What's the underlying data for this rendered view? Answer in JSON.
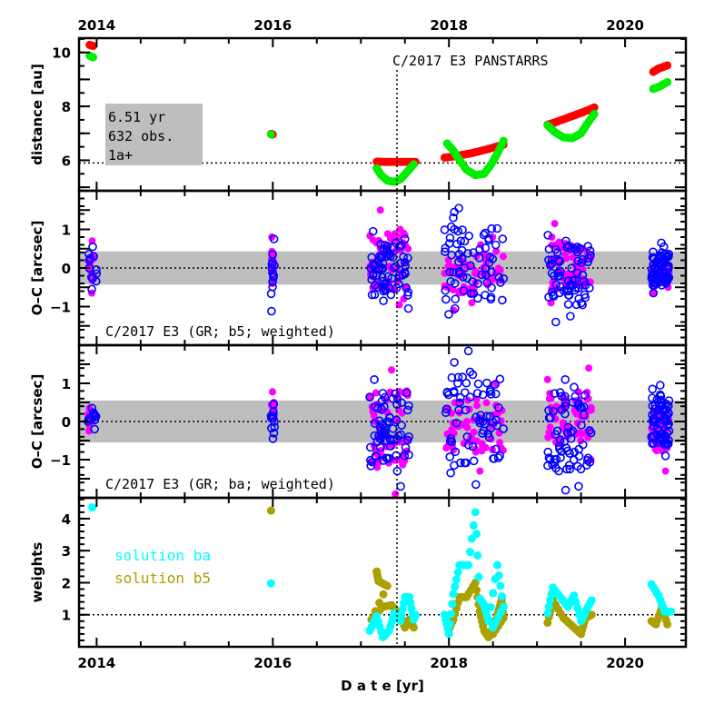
{
  "chart_data": {
    "type": "scatter",
    "title": "C/2017 E3 PANSTARRS",
    "xlabel": "D a t e [yr]",
    "xlim": [
      2013.8,
      2020.69
    ],
    "x_ticks": [
      "2014",
      "2016",
      "2018",
      "2020"
    ],
    "x_tick_values": [
      2014,
      2016,
      2018,
      2020
    ],
    "reference_epoch": 2017.41,
    "colors": {
      "sun_distance": "#ff0000",
      "earth_distance": "#00ee00",
      "oc_filled": "#ff00ff",
      "oc_open": "#0000ff",
      "weights_ba": "#00ffff",
      "weights_b5": "#aaa000",
      "band": "#bebebe"
    },
    "panels": [
      {
        "id": "distance",
        "ylabel": "distance [au]",
        "ylim": [
          4.87,
          10.53
        ],
        "y_ticks": [
          "6",
          "8",
          "10"
        ],
        "y_tick_values": [
          6,
          8,
          10
        ],
        "hline": 5.9,
        "info_box": [
          "6.51 yr",
          "632 obs.",
          "1a+"
        ],
        "title": "C/2017 E3 PANSTARRS",
        "series": [
          {
            "name": "heliocentric distance",
            "color_key": "sun_distance",
            "points": [
              [
                2013.92,
                10.28
              ],
              [
                2013.96,
                10.24
              ],
              [
                2015.98,
                6.98
              ],
              [
                2016.0,
                6.96
              ],
              [
                2017.18,
                5.95
              ],
              [
                2017.25,
                5.94
              ],
              [
                2017.35,
                5.94
              ],
              [
                2017.45,
                5.94
              ],
              [
                2017.55,
                5.94
              ],
              [
                2017.62,
                5.94
              ],
              [
                2017.95,
                6.1
              ],
              [
                2018.05,
                6.14
              ],
              [
                2018.15,
                6.2
              ],
              [
                2018.25,
                6.26
              ],
              [
                2018.35,
                6.34
              ],
              [
                2018.45,
                6.42
              ],
              [
                2018.55,
                6.52
              ],
              [
                2018.62,
                6.58
              ],
              [
                2019.12,
                7.32
              ],
              [
                2019.2,
                7.4
              ],
              [
                2019.3,
                7.52
              ],
              [
                2019.4,
                7.64
              ],
              [
                2019.5,
                7.76
              ],
              [
                2019.58,
                7.86
              ],
              [
                2019.65,
                7.96
              ],
              [
                2020.32,
                9.28
              ],
              [
                2020.38,
                9.4
              ],
              [
                2020.48,
                9.52
              ]
            ]
          },
          {
            "name": "geocentric distance",
            "color_key": "earth_distance",
            "points": [
              [
                2013.92,
                9.88
              ],
              [
                2013.96,
                9.82
              ],
              [
                2015.98,
                6.96
              ],
              [
                2017.18,
                5.7
              ],
              [
                2017.23,
                5.45
              ],
              [
                2017.3,
                5.25
              ],
              [
                2017.38,
                5.2
              ],
              [
                2017.45,
                5.3
              ],
              [
                2017.52,
                5.55
              ],
              [
                2017.6,
                5.85
              ],
              [
                2017.98,
                6.62
              ],
              [
                2018.05,
                6.36
              ],
              [
                2018.1,
                6.1
              ],
              [
                2018.2,
                5.65
              ],
              [
                2018.3,
                5.45
              ],
              [
                2018.4,
                5.5
              ],
              [
                2018.48,
                5.85
              ],
              [
                2018.55,
                6.25
              ],
              [
                2018.62,
                6.72
              ],
              [
                2019.12,
                7.3
              ],
              [
                2019.2,
                7.05
              ],
              [
                2019.3,
                6.85
              ],
              [
                2019.4,
                6.82
              ],
              [
                2019.5,
                7.0
              ],
              [
                2019.57,
                7.35
              ],
              [
                2019.65,
                7.72
              ],
              [
                2020.32,
                8.65
              ],
              [
                2020.38,
                8.72
              ],
              [
                2020.48,
                8.9
              ]
            ]
          }
        ]
      },
      {
        "id": "oc-b5",
        "ylabel": "O–C [arcsec]",
        "ylim": [
          -2.0,
          2.0
        ],
        "y_ticks": [
          "−1",
          "0",
          "1"
        ],
        "y_tick_values": [
          -1,
          0,
          1
        ],
        "band": 0.43,
        "label": "C/2017 E3 (GR; b5; weighted)",
        "clusters": [
          {
            "x": [
              2013.9,
              2014.0
            ],
            "filled": [
              0.7,
              0.3,
              0.2,
              0.1,
              -0.65
            ],
            "open": [
              0.55,
              0.3,
              0.25,
              0.2,
              -0.15,
              -0.55
            ]
          },
          {
            "x": [
              2015.98,
              2016.02
            ],
            "filled": [
              0.8,
              0.3,
              0.2,
              -0.1,
              -0.3,
              -0.4
            ],
            "open": [
              0.75,
              0.35,
              0.15,
              0.1,
              0.0,
              -0.2,
              -1.12
            ]
          },
          {
            "x": [
              2017.1,
              2017.55
            ],
            "filled": [
              1.5,
              1.0,
              0.9,
              0.5,
              -0.5,
              -0.8,
              -0.95
            ],
            "open": [
              0.95,
              0.75,
              0.5,
              0.3,
              0.0,
              -0.3,
              -0.6,
              -0.85,
              -1.05
            ]
          },
          {
            "x": [
              2017.95,
              2018.62
            ],
            "filled": [
              0.8,
              0.6,
              0.3,
              -0.5,
              -0.9,
              -1.1
            ],
            "open": [
              1.55,
              1.45,
              1.3,
              1.0,
              0.7,
              0.4,
              0.0,
              -0.35,
              -0.7,
              -1.05,
              -1.2
            ]
          },
          {
            "x": [
              2019.12,
              2019.62
            ],
            "filled": [
              1.15,
              0.8,
              0.5,
              0.2,
              -0.2,
              -0.9
            ],
            "open": [
              0.85,
              0.7,
              0.5,
              0.2,
              -0.2,
              -0.6,
              -0.95,
              -1.25,
              -1.4
            ]
          },
          {
            "x": [
              2020.3,
              2020.5
            ],
            "filled": [
              0.15,
              -0.5,
              -0.65
            ],
            "open": [
              0.65,
              0.55,
              0.35,
              0.1,
              -0.15,
              -0.45,
              -0.65
            ]
          }
        ]
      },
      {
        "id": "oc-ba",
        "ylabel": "O–C [arcsec]",
        "ylim": [
          -2.0,
          2.0
        ],
        "y_ticks": [
          "−1",
          "0",
          "1"
        ],
        "y_tick_values": [
          -1,
          0,
          1
        ],
        "band": 0.55,
        "label": "C/2017 E3 (GR; ba; weighted)",
        "clusters": [
          {
            "x": [
              2013.9,
              2014.0
            ],
            "filled": [
              0.35,
              0.2,
              0.1,
              -0.25
            ],
            "open": [
              0.35,
              0.2,
              0.15,
              0.0,
              -0.2
            ]
          },
          {
            "x": [
              2015.98,
              2016.02
            ],
            "filled": [
              0.78,
              0.5,
              0.4,
              0.2
            ],
            "open": [
              0.45,
              0.25,
              0.15,
              0.0,
              -0.45
            ]
          },
          {
            "x": [
              2017.1,
              2017.55
            ],
            "filled": [
              1.35,
              0.8,
              0.3,
              -0.5,
              -1.2,
              -1.9
            ],
            "open": [
              1.1,
              0.6,
              0.3,
              0.0,
              -0.4,
              -0.9,
              -1.3,
              -1.7
            ]
          },
          {
            "x": [
              2017.95,
              2018.62
            ],
            "filled": [
              1.0,
              0.5,
              0.0,
              -0.8,
              -1.3
            ],
            "open": [
              1.85,
              1.55,
              1.3,
              1.0,
              0.7,
              0.3,
              0.0,
              -0.4,
              -0.9,
              -1.35,
              -1.65
            ]
          },
          {
            "x": [
              2019.12,
              2019.62
            ],
            "filled": [
              1.4,
              1.1,
              0.6,
              0.2,
              -0.5,
              -1.0
            ],
            "open": [
              1.1,
              0.9,
              0.5,
              0.1,
              -0.3,
              -0.8,
              -1.3,
              -1.7,
              -1.8
            ]
          },
          {
            "x": [
              2020.3,
              2020.5
            ],
            "filled": [
              0.35,
              0.2,
              -0.4,
              -0.7,
              -1.3
            ],
            "open": [
              0.95,
              0.85,
              0.7,
              0.3,
              0.15,
              -0.25,
              -0.55,
              -0.9
            ]
          }
        ]
      },
      {
        "id": "weights",
        "ylabel": "weights",
        "ylim": [
          0.0,
          4.65
        ],
        "y_ticks": [
          "1",
          "2",
          "3",
          "4"
        ],
        "y_tick_values": [
          1,
          2,
          3,
          4
        ],
        "hline": 1.0,
        "legend": [
          {
            "label": "solution ba",
            "color_key": "weights_ba"
          },
          {
            "label": "solution b5",
            "color_key": "weights_b5"
          }
        ],
        "legend_position": "middle-left",
        "series": [
          {
            "name": "solution b5",
            "color_key": "weights_b5",
            "points": [
              [
                2015.98,
                4.25
              ],
              [
                2017.18,
                2.35
              ],
              [
                2017.2,
                2.05
              ],
              [
                2017.3,
                1.9
              ],
              [
                2017.12,
                0.85
              ],
              [
                2017.25,
                1.25
              ],
              [
                2017.35,
                1.3
              ],
              [
                2017.45,
                0.95
              ],
              [
                2017.5,
                0.6
              ],
              [
                2017.55,
                0.85
              ],
              [
                2017.6,
                0.6
              ],
              [
                2018.0,
                0.55
              ],
              [
                2018.05,
                0.85
              ],
              [
                2018.12,
                1.55
              ],
              [
                2018.2,
                1.55
              ],
              [
                2018.3,
                2.0
              ],
              [
                2018.35,
                1.1
              ],
              [
                2018.4,
                0.5
              ],
              [
                2018.45,
                0.3
              ],
              [
                2018.55,
                1.0
              ],
              [
                2018.6,
                1.5
              ],
              [
                2018.62,
                0.9
              ],
              [
                2018.5,
                0.4
              ],
              [
                2019.12,
                0.75
              ],
              [
                2019.18,
                1.45
              ],
              [
                2019.3,
                0.9
              ],
              [
                2019.4,
                0.65
              ],
              [
                2019.5,
                0.4
              ],
              [
                2019.55,
                0.9
              ],
              [
                2019.62,
                1.0
              ],
              [
                2020.3,
                0.8
              ],
              [
                2020.35,
                0.7
              ],
              [
                2020.42,
                1.25
              ],
              [
                2020.48,
                0.7
              ]
            ]
          },
          {
            "name": "solution ba",
            "color_key": "weights_ba",
            "points": [
              [
                2013.95,
                4.35
              ],
              [
                2015.98,
                1.98
              ],
              [
                2017.1,
                0.5
              ],
              [
                2017.18,
                0.95
              ],
              [
                2017.25,
                0.3
              ],
              [
                2017.32,
                0.5
              ],
              [
                2017.38,
                1.05
              ],
              [
                2017.45,
                0.8
              ],
              [
                2017.5,
                1.55
              ],
              [
                2017.55,
                1.55
              ],
              [
                2017.6,
                0.85
              ],
              [
                2017.62,
                1.0
              ],
              [
                2017.95,
                1.0
              ],
              [
                2018.0,
                0.4
              ],
              [
                2018.05,
                1.65
              ],
              [
                2018.12,
                2.55
              ],
              [
                2018.22,
                2.55
              ],
              [
                2018.3,
                4.2
              ],
              [
                2018.35,
                1.5
              ],
              [
                2018.4,
                1.3
              ],
              [
                2018.45,
                0.8
              ],
              [
                2018.55,
                2.55
              ],
              [
                2018.62,
                1.25
              ],
              [
                2018.5,
                0.6
              ],
              [
                2019.12,
                1.05
              ],
              [
                2019.18,
                1.85
              ],
              [
                2019.28,
                1.5
              ],
              [
                2019.35,
                1.25
              ],
              [
                2019.42,
                1.6
              ],
              [
                2019.5,
                0.8
              ],
              [
                2019.55,
                1.1
              ],
              [
                2019.62,
                1.45
              ],
              [
                2020.3,
                1.95
              ],
              [
                2020.38,
                1.6
              ],
              [
                2020.45,
                1.1
              ],
              [
                2020.52,
                1.1
              ]
            ]
          }
        ]
      }
    ]
  }
}
